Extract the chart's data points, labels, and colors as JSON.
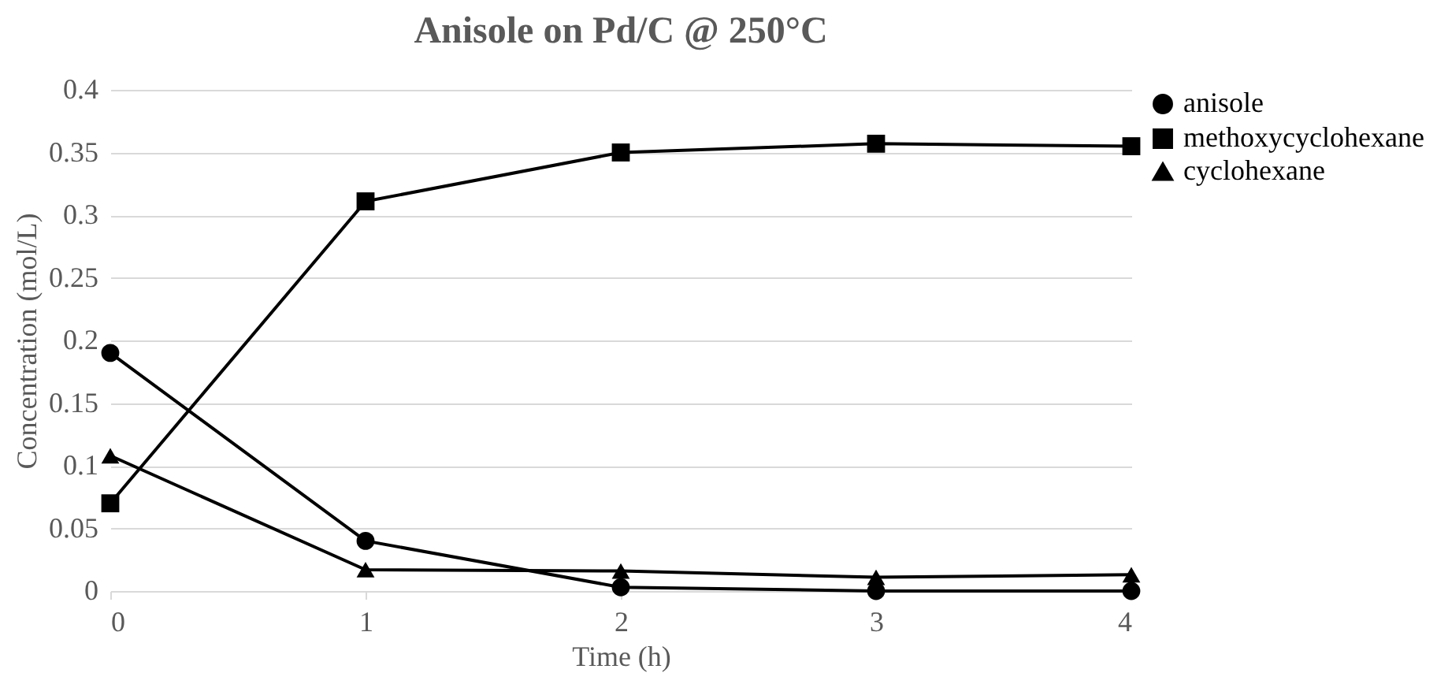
{
  "chart_data": {
    "type": "line",
    "title": "Anisole on Pd/C @ 250°C",
    "xlabel": "Time (h)",
    "ylabel": "Concentration (mol/L)",
    "x": [
      0,
      1,
      2,
      3,
      4
    ],
    "xlim": [
      0,
      4
    ],
    "xticks": [
      0,
      1,
      2,
      3,
      4
    ],
    "ylim": [
      0,
      0.4
    ],
    "yticks": [
      0,
      0.05,
      0.1,
      0.15,
      0.2,
      0.25,
      0.3,
      0.35,
      0.4
    ],
    "grid": "y",
    "legend": "right",
    "line_style": "solid",
    "series": [
      {
        "name": "anisole",
        "color": "#000000",
        "marker": "circle",
        "values": [
          0.19,
          0.04,
          0.003,
          0,
          0
        ]
      },
      {
        "name": "methoxycyclohexane",
        "color": "#000000",
        "marker": "square",
        "values": [
          0.07,
          0.311,
          0.35,
          0.357,
          0.355
        ]
      },
      {
        "name": "cyclohexane",
        "color": "#000000",
        "marker": "triangle",
        "values": [
          0.108,
          0.017,
          0.016,
          0.011,
          0.013
        ]
      }
    ]
  }
}
